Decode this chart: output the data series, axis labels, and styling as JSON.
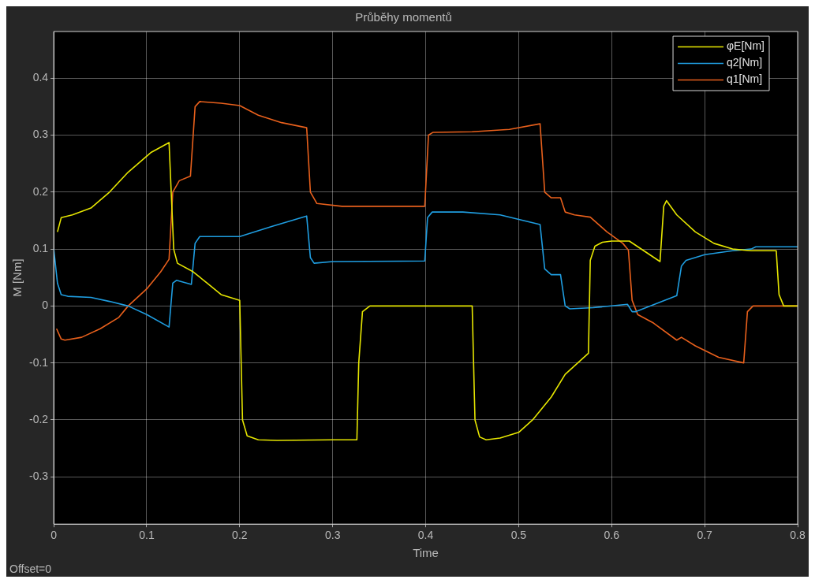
{
  "chart_data": {
    "type": "line",
    "title": "Průběhy momentů",
    "xlabel": "Time",
    "ylabel": "M [Nm]",
    "annotations": [
      "Offset=0"
    ],
    "xlim": [
      0,
      0.8
    ],
    "xticks": [
      0,
      0.1,
      0.2,
      0.3,
      0.4,
      0.5,
      0.6,
      0.7,
      0.8
    ],
    "ylim": [
      -0.383,
      0.482
    ],
    "yticks": [
      -0.3,
      -0.2,
      -0.1,
      0,
      0.1,
      0.2,
      0.3,
      0.4
    ],
    "grid": true,
    "legend": "top right",
    "marker": "none",
    "line_style": "solid",
    "series": [
      {
        "name": "φE[Nm]",
        "color": "#e6e600",
        "x": [
          0.004,
          0.008,
          0.02,
          0.04,
          0.06,
          0.08,
          0.105,
          0.124,
          0.129,
          0.133,
          0.15,
          0.165,
          0.18,
          0.2,
          0.203,
          0.208,
          0.22,
          0.24,
          0.3,
          0.326,
          0.328,
          0.332,
          0.34,
          0.45,
          0.453,
          0.458,
          0.465,
          0.48,
          0.5,
          0.515,
          0.535,
          0.55,
          0.575,
          0.577,
          0.582,
          0.59,
          0.6,
          0.619,
          0.652,
          0.656,
          0.659,
          0.67,
          0.69,
          0.71,
          0.73,
          0.75,
          0.777,
          0.78,
          0.785,
          0.8
        ],
        "values": [
          0.13,
          0.155,
          0.16,
          0.172,
          0.2,
          0.235,
          0.27,
          0.287,
          0.1,
          0.075,
          0.06,
          0.04,
          0.02,
          0.01,
          -0.2,
          -0.228,
          -0.235,
          -0.236,
          -0.235,
          -0.235,
          -0.1,
          -0.01,
          0,
          0,
          -0.2,
          -0.23,
          -0.235,
          -0.232,
          -0.222,
          -0.2,
          -0.16,
          -0.12,
          -0.083,
          0.08,
          0.105,
          0.112,
          0.114,
          0.114,
          0.078,
          0.175,
          0.185,
          0.16,
          0.13,
          0.11,
          0.1,
          0.097,
          0.097,
          0.02,
          0,
          0
        ]
      },
      {
        "name": "q2[Nm]",
        "color": "#1f9de0",
        "x": [
          0,
          0.004,
          0.008,
          0.015,
          0.04,
          0.06,
          0.08,
          0.1,
          0.124,
          0.128,
          0.132,
          0.148,
          0.152,
          0.157,
          0.2,
          0.235,
          0.272,
          0.276,
          0.28,
          0.3,
          0.399,
          0.402,
          0.407,
          0.44,
          0.48,
          0.523,
          0.528,
          0.535,
          0.545,
          0.55,
          0.555,
          0.58,
          0.617,
          0.622,
          0.626,
          0.67,
          0.675,
          0.68,
          0.7,
          0.73,
          0.75,
          0.755,
          0.8
        ],
        "values": [
          0.1,
          0.04,
          0.02,
          0.017,
          0.015,
          0.008,
          0,
          -0.015,
          -0.037,
          0.04,
          0.045,
          0.038,
          0.11,
          0.122,
          0.122,
          0.14,
          0.158,
          0.085,
          0.075,
          0.078,
          0.079,
          0.155,
          0.165,
          0.165,
          0.16,
          0.143,
          0.065,
          0.055,
          0.055,
          0,
          -0.005,
          -0.003,
          0.003,
          -0.01,
          -0.01,
          0.018,
          0.07,
          0.08,
          0.09,
          0.097,
          0.1,
          0.104,
          0.104
        ]
      },
      {
        "name": "q1[Nm]",
        "color": "#e8601c",
        "x": [
          0.003,
          0.008,
          0.012,
          0.03,
          0.05,
          0.07,
          0.08,
          0.1,
          0.115,
          0.124,
          0.128,
          0.135,
          0.147,
          0.152,
          0.157,
          0.18,
          0.2,
          0.22,
          0.245,
          0.272,
          0.276,
          0.283,
          0.31,
          0.399,
          0.403,
          0.408,
          0.45,
          0.49,
          0.523,
          0.528,
          0.535,
          0.545,
          0.55,
          0.56,
          0.577,
          0.595,
          0.612,
          0.618,
          0.622,
          0.628,
          0.645,
          0.67,
          0.675,
          0.69,
          0.715,
          0.742,
          0.746,
          0.752,
          0.8
        ],
        "values": [
          -0.04,
          -0.058,
          -0.06,
          -0.055,
          -0.04,
          -0.02,
          0,
          0.03,
          0.06,
          0.082,
          0.2,
          0.22,
          0.228,
          0.35,
          0.359,
          0.356,
          0.352,
          0.335,
          0.322,
          0.313,
          0.2,
          0.18,
          0.175,
          0.175,
          0.3,
          0.305,
          0.306,
          0.31,
          0.32,
          0.2,
          0.19,
          0.19,
          0.165,
          0.16,
          0.156,
          0.13,
          0.11,
          0.098,
          0.01,
          -0.015,
          -0.03,
          -0.06,
          -0.055,
          -0.07,
          -0.09,
          -0.1,
          -0.01,
          0,
          0
        ]
      }
    ]
  }
}
